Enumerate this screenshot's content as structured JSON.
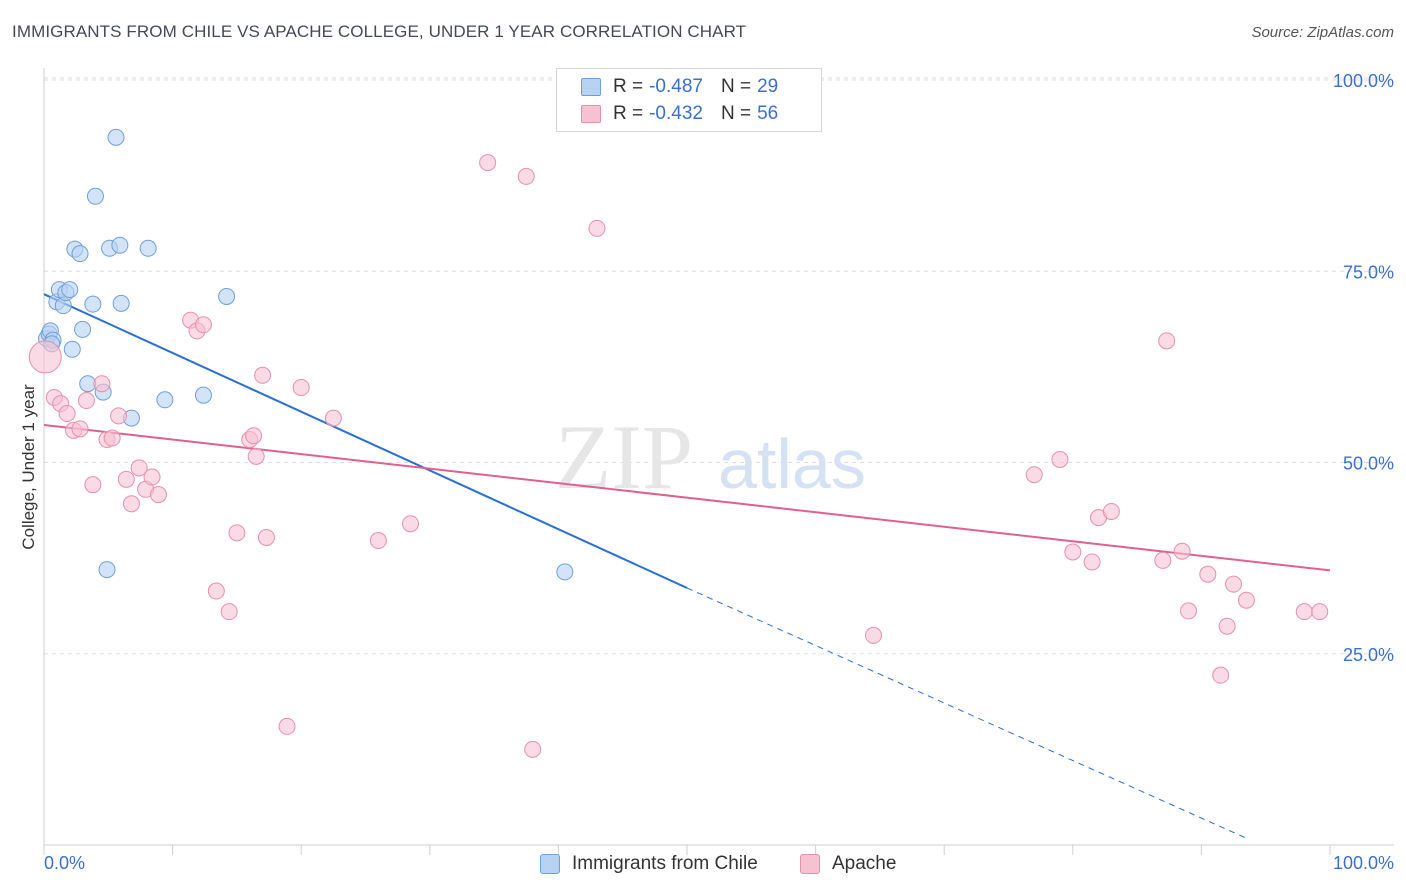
{
  "header": {
    "title": "IMMIGRANTS FROM CHILE VS APACHE COLLEGE, UNDER 1 YEAR CORRELATION CHART",
    "source": "Source: ZipAtlas.com"
  },
  "watermark": {
    "zip": "ZIP",
    "atlas": "atlas"
  },
  "legend": {
    "rows": [
      {
        "r_label": "R =",
        "r_value": "-0.487",
        "n_label": "N =",
        "n_value": "29"
      },
      {
        "r_label": "R =",
        "r_value": "-0.432",
        "n_label": "N =",
        "n_value": "56"
      }
    ]
  },
  "colors": {
    "blue_fill": "#b8d2f4",
    "blue_stroke": "#6f9fd8",
    "blue_line": "#2b6fd6",
    "pink_fill": "#f6c2d2",
    "pink_stroke": "#e690ad",
    "pink_line": "#e0608f",
    "axis_label": "#3a6fd0",
    "grid": "#dddddd"
  },
  "chart_data": {
    "type": "scatter",
    "title": "IMMIGRANTS FROM CHILE VS APACHE COLLEGE, UNDER 1 YEAR CORRELATION CHART",
    "xlabel": "",
    "ylabel": "College, Under 1 year",
    "xlim": [
      0,
      100
    ],
    "ylim": [
      0,
      100
    ],
    "x_tick_labels": [
      "0.0%",
      "100.0%"
    ],
    "y_tick_labels": [
      "25.0%",
      "50.0%",
      "75.0%",
      "100.0%"
    ],
    "y_ticks": [
      25,
      50,
      75,
      100
    ],
    "grid": true,
    "legend_position": "top-center",
    "series": [
      {
        "name": "Immigrants from Chile",
        "color": "#6f9fd8",
        "points": [
          [
            0.2,
            66.2
          ],
          [
            0.4,
            66.8
          ],
          [
            0.5,
            67.2
          ],
          [
            0.7,
            66.0
          ],
          [
            1.0,
            71.0
          ],
          [
            1.2,
            72.6
          ],
          [
            1.5,
            70.5
          ],
          [
            1.7,
            72.2
          ],
          [
            2.0,
            72.6
          ],
          [
            2.2,
            64.8
          ],
          [
            2.4,
            77.9
          ],
          [
            2.8,
            77.3
          ],
          [
            3.0,
            67.4
          ],
          [
            3.4,
            60.3
          ],
          [
            3.8,
            70.7
          ],
          [
            4.0,
            84.8
          ],
          [
            4.6,
            59.2
          ],
          [
            4.9,
            36.0
          ],
          [
            5.1,
            78.0
          ],
          [
            5.6,
            92.5
          ],
          [
            5.9,
            78.4
          ],
          [
            6.0,
            70.8
          ],
          [
            6.8,
            55.8
          ],
          [
            8.1,
            78.0
          ],
          [
            9.4,
            58.2
          ],
          [
            12.4,
            58.8
          ],
          [
            14.2,
            71.7
          ],
          [
            40.5,
            35.7
          ],
          [
            0.6,
            65.5
          ]
        ],
        "trendline": {
          "x": [
            0,
            50
          ],
          "y": [
            72.0,
            33.6
          ],
          "dashed_extension": {
            "x": [
              50,
              100
            ],
            "y": [
              33.6,
              -4.0
            ]
          }
        }
      },
      {
        "name": "Apache",
        "color": "#e690ad",
        "points": [
          [
            0.1,
            63.8
          ],
          [
            0.8,
            58.5
          ],
          [
            1.3,
            57.7
          ],
          [
            1.8,
            56.4
          ],
          [
            2.3,
            54.2
          ],
          [
            2.8,
            54.4
          ],
          [
            3.3,
            58.1
          ],
          [
            3.8,
            47.1
          ],
          [
            4.5,
            60.3
          ],
          [
            4.9,
            53.0
          ],
          [
            5.3,
            53.2
          ],
          [
            5.8,
            56.1
          ],
          [
            6.4,
            47.8
          ],
          [
            6.8,
            44.6
          ],
          [
            7.4,
            49.3
          ],
          [
            7.9,
            46.5
          ],
          [
            8.4,
            48.1
          ],
          [
            8.9,
            45.8
          ],
          [
            11.4,
            68.6
          ],
          [
            11.9,
            67.2
          ],
          [
            12.4,
            68.0
          ],
          [
            13.4,
            33.2
          ],
          [
            14.4,
            30.5
          ],
          [
            15.0,
            40.8
          ],
          [
            16.0,
            53.0
          ],
          [
            16.3,
            53.5
          ],
          [
            16.5,
            50.8
          ],
          [
            17.0,
            61.4
          ],
          [
            17.3,
            40.2
          ],
          [
            18.9,
            15.5
          ],
          [
            20.0,
            59.8
          ],
          [
            22.5,
            55.8
          ],
          [
            26.0,
            39.8
          ],
          [
            28.5,
            42.0
          ],
          [
            34.5,
            89.2
          ],
          [
            37.5,
            87.4
          ],
          [
            38.0,
            12.5
          ],
          [
            43.0,
            80.6
          ],
          [
            64.5,
            27.4
          ],
          [
            77.0,
            48.4
          ],
          [
            79.0,
            50.4
          ],
          [
            80.0,
            38.3
          ],
          [
            81.5,
            37.0
          ],
          [
            82.0,
            42.8
          ],
          [
            83.0,
            43.6
          ],
          [
            87.0,
            37.2
          ],
          [
            87.3,
            65.9
          ],
          [
            88.5,
            38.4
          ],
          [
            89.0,
            30.6
          ],
          [
            90.5,
            35.4
          ],
          [
            91.5,
            22.2
          ],
          [
            92.0,
            28.6
          ],
          [
            92.5,
            34.1
          ],
          [
            93.5,
            32.0
          ],
          [
            98.0,
            30.5
          ],
          [
            99.2,
            30.5
          ]
        ],
        "trendline": {
          "x": [
            0,
            100
          ],
          "y": [
            54.9,
            35.9
          ]
        }
      }
    ]
  }
}
